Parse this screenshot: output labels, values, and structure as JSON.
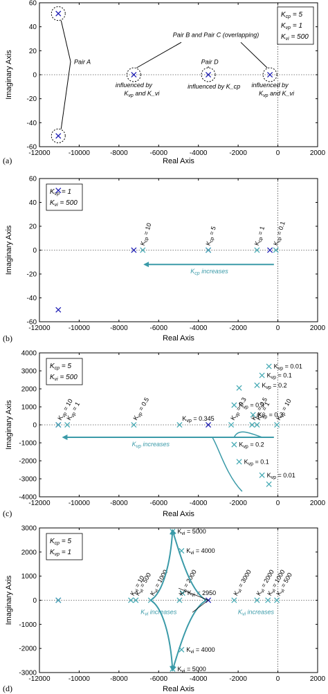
{
  "colors": {
    "pole_blue": "#1c1cb4",
    "pole_teal": "#46aab4",
    "arrow_teal": "#3a9aa8",
    "axis": "#000000"
  },
  "chart_data": [
    {
      "type": "scatter",
      "panel_label": "(a)",
      "xlabel": "Real Axis",
      "ylabel": "Imaginary Axis",
      "xlim": [
        -12000,
        2000
      ],
      "ylim": [
        -60,
        60
      ],
      "xticks": [
        -12000,
        -10000,
        -8000,
        -6000,
        -4000,
        -2000,
        0,
        2000
      ],
      "yticks": [
        -60,
        -40,
        -20,
        0,
        20,
        40,
        60
      ],
      "legend_lines": [
        "K_cp = 5",
        "K_vp = 1",
        "K_vi = 500"
      ],
      "legend_placement": "top-right",
      "series": [
        {
          "color": "#1c1cb4",
          "points": [
            [
              -11050,
              51
            ],
            [
              -11050,
              -51
            ],
            [
              -7250,
              0
            ],
            [
              -3500,
              0
            ],
            [
              -400,
              0
            ]
          ]
        }
      ],
      "annotations": [
        "Pair A",
        "Pair B and Pair C (overlapping)",
        "Pair D",
        "influenced by",
        "K_vp and K_vi",
        "influenced by K_cp",
        "influenced by",
        "K_vp and K_vi"
      ]
    },
    {
      "type": "scatter",
      "panel_label": "(b)",
      "xlabel": "Real Axis",
      "ylabel": "Imaginary Axis",
      "xlim": [
        -12000,
        2000
      ],
      "ylim": [
        -60,
        60
      ],
      "xticks": [
        -12000,
        -10000,
        -8000,
        -6000,
        -4000,
        -2000,
        0,
        2000
      ],
      "yticks": [
        -60,
        -40,
        -20,
        0,
        20,
        40,
        60
      ],
      "legend_lines": [
        "K_vp = 1",
        "K_vi = 500"
      ],
      "legend_placement": "top-left",
      "series": [
        {
          "color": "#1c1cb4",
          "points": [
            [
              -11050,
              50
            ],
            [
              -11050,
              -50
            ],
            [
              -7250,
              0
            ],
            [
              -3500,
              0
            ],
            [
              -400,
              0
            ]
          ]
        },
        {
          "color": "#46aab4",
          "points": [
            [
              -6800,
              0
            ],
            [
              -3500,
              0
            ],
            [
              -1050,
              0
            ],
            [
              -100,
              0
            ]
          ]
        }
      ],
      "point_labels": [
        "K_cp = 10",
        "K_cp = 5",
        "K_cp = 1",
        "K_cp = 0.1"
      ],
      "annotations": [
        "K_cp increases"
      ]
    },
    {
      "type": "scatter",
      "panel_label": "(c)",
      "xlabel": "Real Axis",
      "ylabel": "Imaginary Axis",
      "xlim": [
        -12000,
        2000
      ],
      "ylim": [
        -4000,
        4000
      ],
      "xticks": [
        -12000,
        -10000,
        -8000,
        -6000,
        -4000,
        -2000,
        0,
        2000
      ],
      "yticks": [
        -4000,
        -3000,
        -2000,
        -1000,
        0,
        1000,
        2000,
        3000,
        4000
      ],
      "legend_lines": [
        "K_cp = 5",
        "K_vi = 500"
      ],
      "legend_placement": "top-left",
      "series": [
        {
          "color": "#1c1cb4",
          "points": [
            [
              -11050,
              0
            ],
            [
              -3500,
              0
            ]
          ]
        },
        {
          "color": "#46aab4",
          "points": [
            [
              -11050,
              0
            ],
            [
              -10600,
              0
            ],
            [
              -7250,
              0
            ],
            [
              -4950,
              0
            ],
            [
              -2350,
              0
            ],
            [
              -1300,
              0
            ],
            [
              -1050,
              0
            ],
            [
              -50,
              0
            ],
            [
              -450,
              3250
            ],
            [
              -800,
              2750
            ],
            [
              -1050,
              2200
            ],
            [
              -2200,
              1100
            ],
            [
              -1250,
              560
            ],
            [
              -2200,
              -1100
            ],
            [
              -1950,
              -2050
            ],
            [
              -800,
              -2800
            ],
            [
              -450,
              -3300
            ],
            [
              -1950,
              2050
            ]
          ]
        }
      ],
      "point_labels": [
        "K_vp = 10",
        "K_vp = 1",
        "K_vp = 0.5",
        "K_vp = 0.345",
        "K_vp = 0.3",
        "K_vp = 0.5",
        "K_vp = 1",
        "K_vp = 10",
        "K_vp = 0.01",
        "K_vp = 0.1",
        "K_vp = 0.2",
        "K_vp = 0.3",
        "K_vp = 0.3",
        "K_vp = 0.2",
        "K_vp = 0.1",
        "K_vp = 0.01"
      ],
      "annotations": [
        "K_vp increases"
      ]
    },
    {
      "type": "scatter",
      "panel_label": "(d)",
      "xlabel": "Real Axis",
      "ylabel": "Imaginary Axis",
      "xlim": [
        -12000,
        2000
      ],
      "ylim": [
        -3000,
        3000
      ],
      "xticks": [
        -12000,
        -10000,
        -8000,
        -6000,
        -4000,
        -2000,
        0,
        2000
      ],
      "yticks": [
        -3000,
        -2000,
        -1000,
        0,
        1000,
        2000,
        3000
      ],
      "legend_lines": [
        "K_cp = 5",
        "K_vp = 1"
      ],
      "legend_placement": "top-left",
      "series": [
        {
          "color": "#1c1cb4",
          "points": [
            [
              -11050,
              0
            ],
            [
              -3500,
              0
            ]
          ]
        },
        {
          "color": "#46aab4",
          "points": [
            [
              -11050,
              0
            ],
            [
              -7400,
              0
            ],
            [
              -7150,
              0
            ],
            [
              -6400,
              0
            ],
            [
              -4950,
              0
            ],
            [
              -2200,
              0
            ],
            [
              -1050,
              0
            ],
            [
              -500,
              0
            ],
            [
              -50,
              0
            ],
            [
              -5300,
              2850
            ],
            [
              -4850,
              2050
            ],
            [
              -4800,
              300
            ],
            [
              -5300,
              -2850
            ],
            [
              -4850,
              -2050
            ]
          ]
        }
      ],
      "point_labels": [
        "K_vi = 10",
        "K_vi = 500",
        "K_vi = 1000",
        "K_vi = 2000",
        "K_vi = 3000",
        "K_vi = 2000",
        "K_vi = 1000",
        "K_vi = 500",
        "K_vi = 10",
        "K_vi = 5000",
        "K_vi = 4000",
        "K_vi = 2950",
        "K_vi = 5000",
        "K_vi = 4000"
      ],
      "annotations": [
        "K_vi increases",
        "K_vi increases"
      ]
    }
  ]
}
